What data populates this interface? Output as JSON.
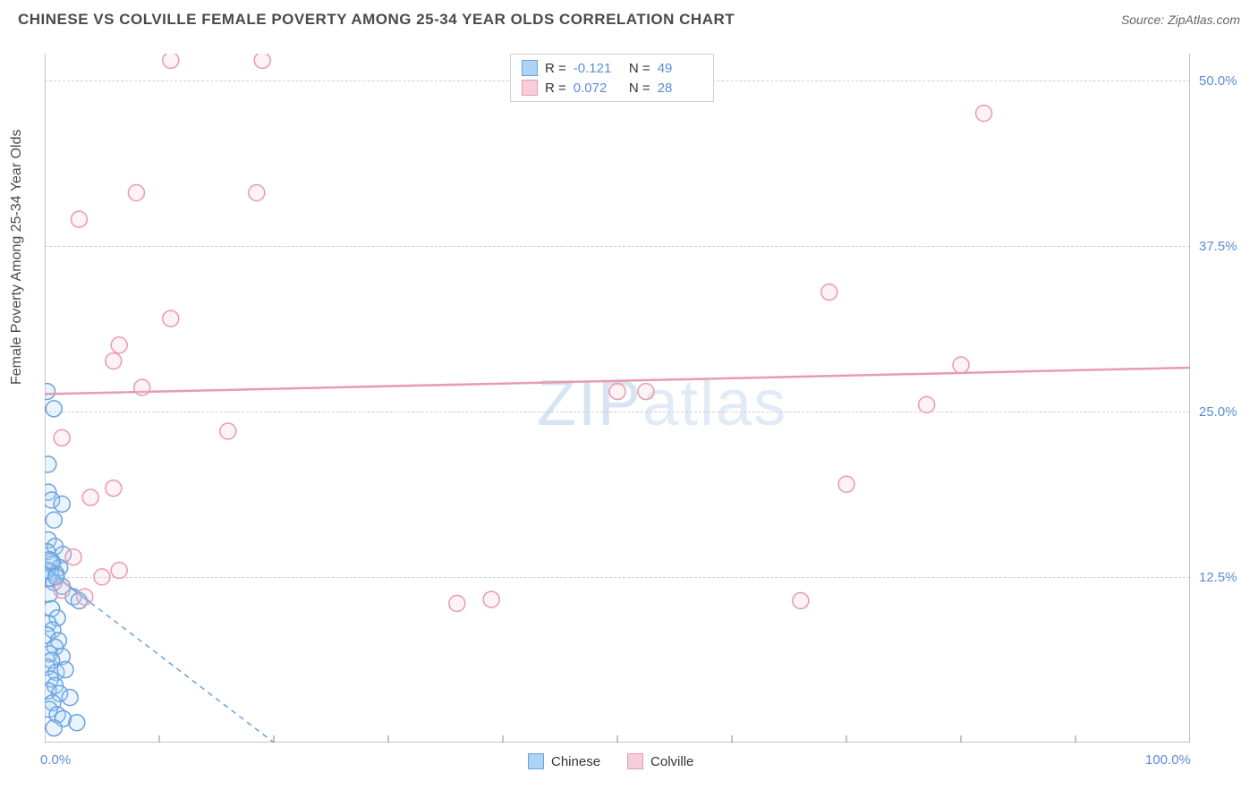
{
  "header": {
    "title": "CHINESE VS COLVILLE FEMALE POVERTY AMONG 25-34 YEAR OLDS CORRELATION CHART",
    "source": "Source: ZipAtlas.com"
  },
  "watermark": {
    "part1": "ZIP",
    "part2": "atlas"
  },
  "chart": {
    "type": "scatter",
    "y_axis_label": "Female Poverty Among 25-34 Year Olds",
    "xlim": [
      0,
      100
    ],
    "ylim": [
      0,
      52
    ],
    "x_ticks": [
      0,
      10,
      20,
      30,
      40,
      50,
      60,
      70,
      80,
      90,
      100
    ],
    "x_tick_labels": {
      "0": "0.0%",
      "100": "100.0%"
    },
    "y_ticks": [
      12.5,
      25.0,
      37.5,
      50.0
    ],
    "y_tick_labels": [
      "12.5%",
      "25.0%",
      "37.5%",
      "50.0%"
    ],
    "grid_color": "#d0d0d0",
    "axis_color": "#888888",
    "label_color": "#5b8dd6",
    "text_color": "#4a4a4a",
    "background_color": "#ffffff",
    "marker_radius": 9,
    "marker_stroke_width": 1.5,
    "marker_fill_opacity": 0.25,
    "trend_line_width": 2.5,
    "series": [
      {
        "name": "Chinese",
        "color": "#6aa2e0",
        "fill": "#add4f5",
        "R": "-0.121",
        "N": "49",
        "trend": {
          "x1": 0,
          "y1": 13.2,
          "x2": 20,
          "y2": 0,
          "dashed_after_x": 4
        },
        "points": [
          [
            0.2,
            26.5
          ],
          [
            0.8,
            25.2
          ],
          [
            0.3,
            21.0
          ],
          [
            0.3,
            18.9
          ],
          [
            0.6,
            18.3
          ],
          [
            1.5,
            18.0
          ],
          [
            0.8,
            16.8
          ],
          [
            0.3,
            15.3
          ],
          [
            0.9,
            14.8
          ],
          [
            0.2,
            14.4
          ],
          [
            1.6,
            14.2
          ],
          [
            0.4,
            13.8
          ],
          [
            0.7,
            13.5
          ],
          [
            1.3,
            13.2
          ],
          [
            0.5,
            12.9
          ],
          [
            1.0,
            12.7
          ],
          [
            0.3,
            12.4
          ],
          [
            0.8,
            12.1
          ],
          [
            1.5,
            11.8
          ],
          [
            0.4,
            11.2
          ],
          [
            2.5,
            11.0
          ],
          [
            3.0,
            10.7
          ],
          [
            0.6,
            10.1
          ],
          [
            1.1,
            9.4
          ],
          [
            0.3,
            9.0
          ],
          [
            0.7,
            8.5
          ],
          [
            0.2,
            8.1
          ],
          [
            1.2,
            7.7
          ],
          [
            0.9,
            7.2
          ],
          [
            0.4,
            6.7
          ],
          [
            1.5,
            6.5
          ],
          [
            0.6,
            6.2
          ],
          [
            0.2,
            5.7
          ],
          [
            1.0,
            5.3
          ],
          [
            1.8,
            5.5
          ],
          [
            0.5,
            4.8
          ],
          [
            0.9,
            4.3
          ],
          [
            0.3,
            3.9
          ],
          [
            1.3,
            3.7
          ],
          [
            2.2,
            3.4
          ],
          [
            0.7,
            3.0
          ],
          [
            0.4,
            2.5
          ],
          [
            1.1,
            2.1
          ],
          [
            1.6,
            1.8
          ],
          [
            2.8,
            1.5
          ],
          [
            0.8,
            1.1
          ],
          [
            0.2,
            13.0
          ],
          [
            1.0,
            12.5
          ],
          [
            0.6,
            13.7
          ]
        ]
      },
      {
        "name": "Colville",
        "color": "#e89ab0",
        "fill": "#f7cdd9",
        "R": "0.072",
        "N": "28",
        "trend": {
          "x1": 0,
          "y1": 26.3,
          "x2": 100,
          "y2": 28.3,
          "dashed_after_x": 100
        },
        "points": [
          [
            11.0,
            51.5
          ],
          [
            19.0,
            51.5
          ],
          [
            82.0,
            47.5
          ],
          [
            8.0,
            41.5
          ],
          [
            18.5,
            41.5
          ],
          [
            3.0,
            39.5
          ],
          [
            68.5,
            34.0
          ],
          [
            11.0,
            32.0
          ],
          [
            6.5,
            30.0
          ],
          [
            6.0,
            28.8
          ],
          [
            80.0,
            28.5
          ],
          [
            8.5,
            26.8
          ],
          [
            16.0,
            23.5
          ],
          [
            50.0,
            26.5
          ],
          [
            52.5,
            26.5
          ],
          [
            77.0,
            25.5
          ],
          [
            1.5,
            23.0
          ],
          [
            70.0,
            19.5
          ],
          [
            6.0,
            19.2
          ],
          [
            4.0,
            18.5
          ],
          [
            2.5,
            14.0
          ],
          [
            5.0,
            12.5
          ],
          [
            6.5,
            13.0
          ],
          [
            3.5,
            11.0
          ],
          [
            36.0,
            10.5
          ],
          [
            39.0,
            10.8
          ],
          [
            66.0,
            10.7
          ],
          [
            1.5,
            11.5
          ]
        ]
      }
    ]
  },
  "legend": {
    "items": [
      {
        "label": "Chinese",
        "color": "#6aa2e0",
        "fill": "#add4f5"
      },
      {
        "label": "Colville",
        "color": "#e89ab0",
        "fill": "#f7cdd9"
      }
    ]
  }
}
